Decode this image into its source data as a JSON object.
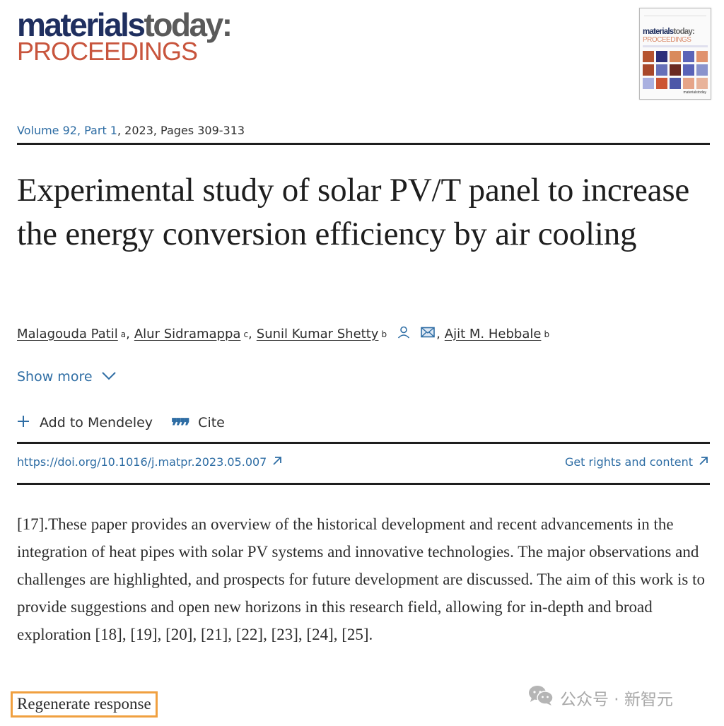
{
  "journal": {
    "logo_word1": "materials",
    "logo_word2": "today:",
    "logo_line2": "PROCEEDINGS",
    "cover": {
      "title_word1": "materials",
      "title_word2": "today:",
      "title_line2": "PROCEEDINGS",
      "footer": "materialstoday",
      "tile_colors": [
        "#b5532f",
        "#2c2f7a",
        "#d98a5c",
        "#5a63b8",
        "#e0926e",
        "#a8472a",
        "#6670b8",
        "#6a2a22",
        "#5a63b8",
        "#8a93cc",
        "#a9b0e0",
        "#cc5533",
        "#4c57a8",
        "#e6a488",
        "#e8b39a"
      ]
    }
  },
  "article_meta": {
    "volume_link": "Volume 92, Part 1",
    "rest": ", 2023, Pages 309-313"
  },
  "title": "Experimental study of solar PV/T panel to increase the energy conversion efficiency by air cooling",
  "authors": [
    {
      "name": "Malagouda Patil",
      "sup": "a"
    },
    {
      "name": "Alur Sidramappa",
      "sup": "c"
    },
    {
      "name": "Sunil Kumar Shetty",
      "sup": "b"
    },
    {
      "name": "Ajit M. Hebbale",
      "sup": "b"
    }
  ],
  "show_more": "Show more",
  "actions": {
    "add_mendeley": "Add to Mendeley",
    "cite": "Cite"
  },
  "links": {
    "doi": "https://doi.org/10.1016/j.matpr.2023.05.007",
    "rights": "Get rights and content"
  },
  "body_text": "[17].These paper provides an overview of the historical development and recent advancements in the integration of heat pipes with solar PV systems and innovative technologies. The major observations and challenges are highlighted, and prospects for future development are discussed. The aim of this work is to provide suggestions and open new horizons in this research field, allowing for in-depth and broad exploration [18], [19], [20], [21], [22], [23], [24], [25].",
  "regenerate_label": "Regenerate response",
  "watermark": "公众号 · 新智元",
  "colors": {
    "link": "#2e6da4",
    "highlight_border": "#f0a040",
    "logo_navy": "#1f2f5f",
    "logo_red": "#c8553d"
  }
}
